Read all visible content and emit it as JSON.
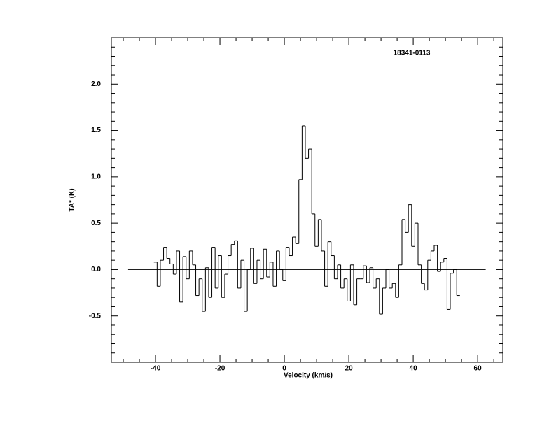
{
  "chart_data": {
    "type": "step",
    "title": "18341-0113",
    "x_label": "Velocity (km/s)",
    "y_label": "TA* (K)",
    "xlim": [
      -53.7,
      67.8
    ],
    "ylim": [
      -1.0,
      2.5
    ],
    "xticks": [
      -40,
      -20,
      0,
      20,
      40,
      60
    ],
    "yticks": [
      -0.5,
      {
        "value": 0,
        "label": "0.0"
      },
      0.5,
      {
        "value": 1,
        "label": "1.0"
      },
      1.5,
      {
        "value": 2,
        "label": "2.0"
      }
    ],
    "xticks_minor": [
      -50,
      -45,
      -35,
      -30,
      -25,
      -15,
      -10,
      -5,
      5,
      10,
      15,
      25,
      30,
      35,
      45,
      50,
      55,
      65
    ],
    "yticks_minor": [
      -0.9,
      -0.8,
      -0.7,
      -0.6,
      -0.4,
      -0.3,
      -0.2,
      -0.1,
      0.1,
      0.2,
      0.3,
      0.4,
      0.6,
      0.7,
      0.8,
      0.9,
      1.1,
      1.2,
      1.3,
      1.4,
      1.6,
      1.7,
      1.8,
      1.9,
      2.1,
      2.2,
      2.3,
      2.4
    ],
    "baseline": {
      "x": [
        -48.5,
        62.5
      ],
      "y": 0
    },
    "color": "#000000",
    "x": [
      -40,
      -39,
      -38,
      -37,
      -36,
      -35,
      -34,
      -33,
      -32,
      -31,
      -30,
      -29,
      -28,
      -27,
      -26,
      -25,
      -24,
      -23,
      -22,
      -21,
      -20,
      -19,
      -18,
      -17,
      -16,
      -15,
      -14,
      -13,
      -12,
      -11,
      -10,
      -9,
      -8,
      -7,
      -6,
      -5,
      -4,
      -3,
      -2,
      -1,
      0,
      1,
      2,
      3,
      4,
      5,
      6,
      7,
      8,
      9,
      10,
      11,
      12,
      13,
      14,
      15,
      16,
      17,
      18,
      19,
      20,
      21,
      22,
      23,
      24,
      25,
      26,
      27,
      28,
      29,
      30,
      31,
      32,
      33,
      34,
      35,
      36,
      37,
      38,
      39,
      40,
      41,
      42,
      43,
      44,
      45,
      46,
      47,
      48,
      49,
      50,
      51,
      52,
      53,
      54
    ],
    "values": [
      0.08,
      -0.18,
      0.1,
      0.24,
      0.12,
      0.06,
      -0.05,
      0.2,
      -0.35,
      0.14,
      -0.1,
      0.2,
      0.05,
      -0.28,
      -0.1,
      -0.45,
      0.02,
      -0.3,
      0.24,
      -0.2,
      0.15,
      -0.3,
      -0.05,
      0.15,
      0.27,
      0.31,
      -0.2,
      0.1,
      -0.45,
      0.0,
      0.23,
      -0.15,
      0.1,
      -0.1,
      0.22,
      -0.08,
      0.08,
      -0.18,
      0.2,
      0.0,
      -0.12,
      0.24,
      0.15,
      0.35,
      0.28,
      0.97,
      1.55,
      1.2,
      1.3,
      0.6,
      0.25,
      0.54,
      0.2,
      -0.18,
      0.3,
      0.15,
      -0.1,
      0.05,
      -0.2,
      -0.1,
      -0.34,
      0.05,
      -0.38,
      -0.1,
      -0.1,
      0.04,
      -0.14,
      0.02,
      -0.2,
      -0.1,
      -0.48,
      -0.2,
      0.0,
      -0.2,
      -0.15,
      -0.3,
      0.05,
      0.54,
      0.4,
      0.7,
      0.25,
      0.5,
      0.05,
      -0.15,
      -0.22,
      0.1,
      0.2,
      0.26,
      -0.02,
      0.08,
      0.12,
      -0.43,
      -0.04,
      0.0,
      -0.28
    ]
  }
}
